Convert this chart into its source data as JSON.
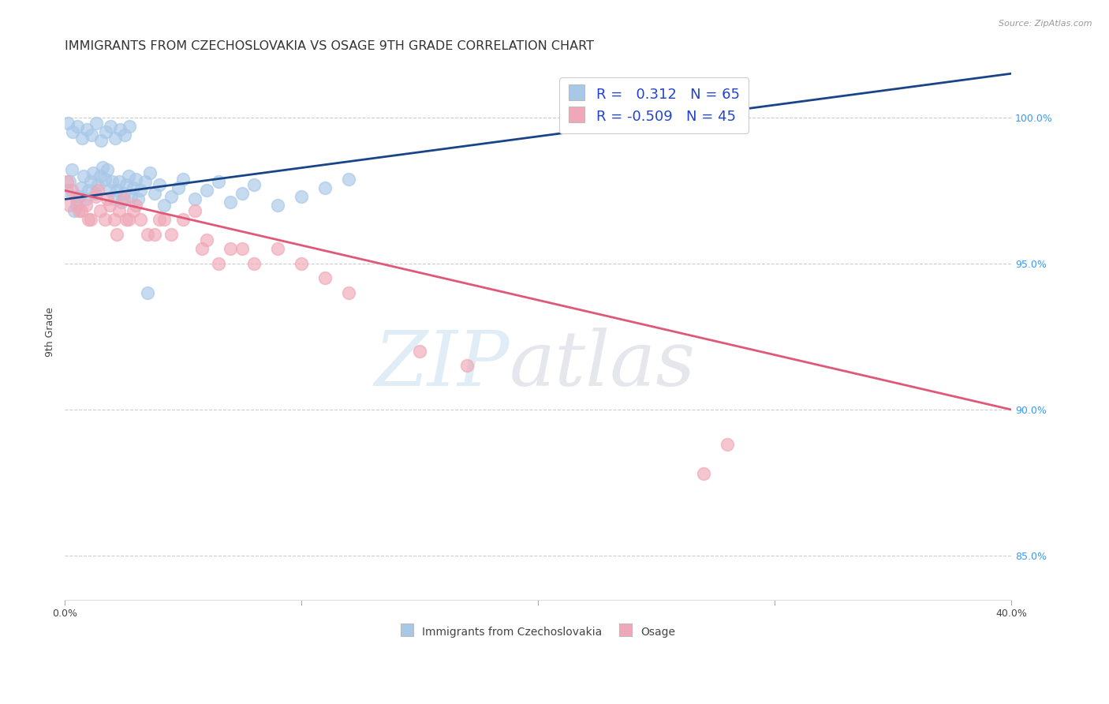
{
  "title": "IMMIGRANTS FROM CZECHOSLOVAKIA VS OSAGE 9TH GRADE CORRELATION CHART",
  "source": "Source: ZipAtlas.com",
  "ylabel_label": "9th Grade",
  "legend_blue_label": "R =   0.312   N = 65",
  "legend_pink_label": "R = -0.509   N = 45",
  "blue_color": "#a8c8e8",
  "blue_line_color": "#1a4488",
  "pink_color": "#f0a8b8",
  "pink_line_color": "#e05878",
  "watermark_zip": "ZIP",
  "watermark_atlas": "atlas",
  "blue_scatter_x": [
    0.1,
    0.2,
    0.3,
    0.4,
    0.5,
    0.6,
    0.7,
    0.8,
    0.9,
    1.0,
    1.1,
    1.2,
    1.3,
    1.4,
    1.5,
    1.6,
    1.7,
    1.8,
    1.9,
    2.0,
    2.1,
    2.2,
    2.3,
    2.4,
    2.5,
    2.6,
    2.7,
    2.8,
    2.9,
    3.0,
    3.1,
    3.2,
    3.4,
    3.6,
    3.8,
    4.0,
    4.2,
    4.5,
    4.8,
    5.0,
    5.5,
    6.0,
    6.5,
    7.0,
    7.5,
    8.0,
    9.0,
    10.0,
    11.0,
    12.0,
    0.15,
    0.35,
    0.55,
    0.75,
    0.95,
    1.15,
    1.35,
    1.55,
    1.75,
    1.95,
    2.15,
    2.35,
    2.55,
    2.75,
    3.5
  ],
  "blue_scatter_y": [
    97.5,
    97.8,
    98.2,
    96.8,
    97.0,
    97.3,
    97.6,
    98.0,
    97.2,
    97.5,
    97.8,
    98.1,
    97.4,
    97.7,
    98.0,
    98.3,
    97.9,
    98.2,
    97.5,
    97.8,
    97.2,
    97.5,
    97.8,
    97.1,
    97.4,
    97.7,
    98.0,
    97.3,
    97.6,
    97.9,
    97.2,
    97.5,
    97.8,
    98.1,
    97.4,
    97.7,
    97.0,
    97.3,
    97.6,
    97.9,
    97.2,
    97.5,
    97.8,
    97.1,
    97.4,
    97.7,
    97.0,
    97.3,
    97.6,
    97.9,
    99.8,
    99.5,
    99.7,
    99.3,
    99.6,
    99.4,
    99.8,
    99.2,
    99.5,
    99.7,
    99.3,
    99.6,
    99.4,
    99.7,
    94.0
  ],
  "pink_scatter_x": [
    0.1,
    0.3,
    0.5,
    0.7,
    0.9,
    1.1,
    1.3,
    1.5,
    1.7,
    1.9,
    2.1,
    2.3,
    2.5,
    2.7,
    2.9,
    3.2,
    3.5,
    4.0,
    4.5,
    5.0,
    5.5,
    6.0,
    7.0,
    8.0,
    9.0,
    10.0,
    11.0,
    12.0,
    15.0,
    17.0,
    0.2,
    0.6,
    1.0,
    1.4,
    1.8,
    2.2,
    2.6,
    3.0,
    3.8,
    4.2,
    5.8,
    6.5,
    7.5,
    28.0,
    27.0
  ],
  "pink_scatter_y": [
    97.8,
    97.5,
    97.2,
    96.8,
    97.0,
    96.5,
    97.3,
    96.8,
    96.5,
    97.0,
    96.5,
    96.8,
    97.2,
    96.5,
    96.8,
    96.5,
    96.0,
    96.5,
    96.0,
    96.5,
    96.8,
    95.8,
    95.5,
    95.0,
    95.5,
    95.0,
    94.5,
    94.0,
    92.0,
    91.5,
    97.0,
    96.8,
    96.5,
    97.5,
    97.2,
    96.0,
    96.5,
    97.0,
    96.0,
    96.5,
    95.5,
    95.0,
    95.5,
    88.8,
    87.8
  ],
  "blue_trend_x": [
    0.0,
    40.0
  ],
  "blue_trend_y": [
    97.2,
    101.5
  ],
  "pink_trend_x": [
    0.0,
    40.0
  ],
  "pink_trend_y": [
    97.5,
    90.0
  ],
  "xlim": [
    0.0,
    40.0
  ],
  "ylim": [
    83.5,
    101.8
  ],
  "xticks": [
    0.0,
    10.0,
    20.0,
    30.0,
    40.0
  ],
  "xtick_labels": [
    "0.0%",
    "",
    "",
    "",
    "40.0%"
  ],
  "yticks": [
    85.0,
    90.0,
    95.0,
    100.0
  ],
  "ytick_labels_right": [
    "85.0%",
    "90.0%",
    "95.0%",
    "100.0%"
  ],
  "grid_color": "#cccccc",
  "background_color": "#ffffff",
  "title_fontsize": 11.5,
  "axis_label_fontsize": 9,
  "tick_fontsize": 9,
  "legend_fontsize": 13,
  "right_tick_color": "#3399ff",
  "bottom_legend_labels": [
    "Immigrants from Czechoslovakia",
    "Osage"
  ]
}
